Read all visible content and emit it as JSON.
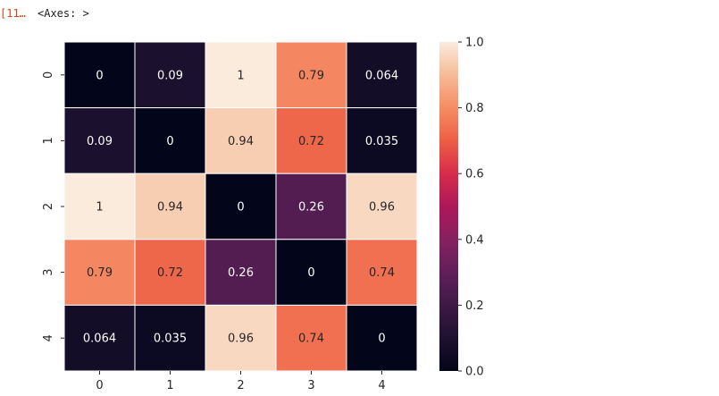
{
  "cell": {
    "prompt": "[11…",
    "output": "<Axes: >"
  },
  "chart_data": {
    "type": "heatmap",
    "x_labels": [
      "0",
      "1",
      "2",
      "3",
      "4"
    ],
    "y_labels": [
      "0",
      "1",
      "2",
      "3",
      "4"
    ],
    "values": [
      [
        0,
        0.09,
        1,
        0.79,
        0.064
      ],
      [
        0.09,
        0,
        0.94,
        0.72,
        0.035
      ],
      [
        1,
        0.94,
        0,
        0.26,
        0.96
      ],
      [
        0.79,
        0.72,
        0.26,
        0,
        0.74
      ],
      [
        0.064,
        0.035,
        0.96,
        0.74,
        0
      ]
    ],
    "annotations": [
      [
        "0",
        "0.09",
        "1",
        "0.79",
        "0.064"
      ],
      [
        "0.09",
        "0",
        "0.94",
        "0.72",
        "0.035"
      ],
      [
        "1",
        "0.94",
        "0",
        "0.26",
        "0.96"
      ],
      [
        "0.79",
        "0.72",
        "0.26",
        "0",
        "0.74"
      ],
      [
        "0.064",
        "0.035",
        "0.96",
        "0.74",
        "0"
      ]
    ],
    "colormap": "rocket",
    "vmin": 0,
    "vmax": 1,
    "colorbar_ticks": [
      "0.0",
      "0.2",
      "0.4",
      "0.6",
      "0.8",
      "1.0"
    ],
    "colorbar_tick_values": [
      0,
      0.2,
      0.4,
      0.6,
      0.8,
      1.0
    ],
    "cell_border_color": "#ffffff",
    "title": "",
    "xlabel": "",
    "ylabel": ""
  }
}
